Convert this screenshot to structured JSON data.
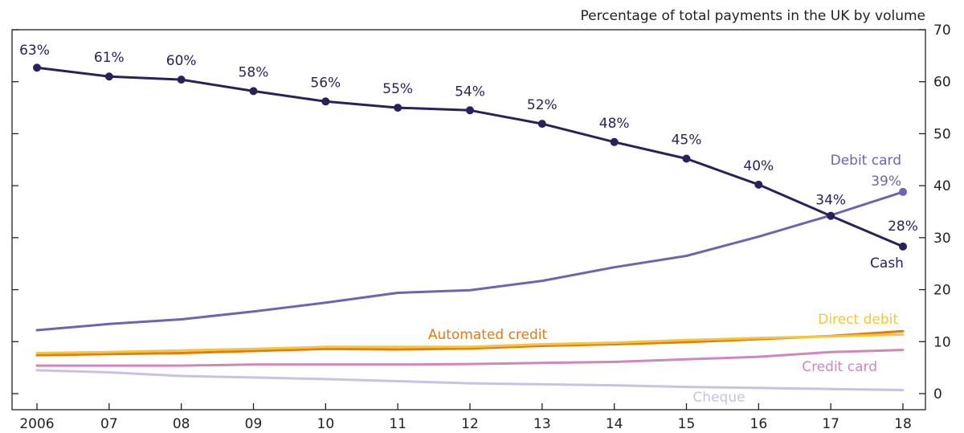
{
  "chart_data": {
    "type": "line",
    "title": "",
    "ylabel": "Percentage of total payments in the UK by volume",
    "xlabel": "",
    "ylim": [
      0,
      70
    ],
    "yticks": [
      "0",
      "10",
      "20",
      "30",
      "40",
      "50",
      "60",
      "70"
    ],
    "categories": [
      "2006",
      "07",
      "08",
      "09",
      "10",
      "11",
      "12",
      "13",
      "14",
      "15",
      "16",
      "17",
      "18"
    ],
    "grid": false,
    "series": [
      {
        "name": "Cash",
        "color": "#27235a",
        "markers": true,
        "values": [
          62.7,
          61.0,
          60.4,
          58.2,
          56.2,
          55.0,
          54.5,
          51.9,
          48.4,
          45.2,
          40.2,
          34.2,
          28.3
        ],
        "value_labels": [
          "63%",
          "61%",
          "60%",
          "58%",
          "56%",
          "55%",
          "54%",
          "52%",
          "48%",
          "45%",
          "40%",
          "34%",
          "28%"
        ]
      },
      {
        "name": "Debit card",
        "color": "#6e64b0",
        "values": [
          12.2,
          13.4,
          14.3,
          15.8,
          17.5,
          19.4,
          19.9,
          21.7,
          24.3,
          26.5,
          30.2,
          34.3,
          38.8
        ],
        "end_label": "39%"
      },
      {
        "name": "Direct debit",
        "color": "#f5c53b",
        "values": [
          7.8,
          8.0,
          8.3,
          8.6,
          9.0,
          9.0,
          9.0,
          9.5,
          9.8,
          10.3,
          10.7,
          11.0,
          11.4
        ]
      },
      {
        "name": "Automated credit",
        "color": "#e17b12",
        "values": [
          7.4,
          7.6,
          7.8,
          8.2,
          8.6,
          8.5,
          8.7,
          9.2,
          9.5,
          9.9,
          10.5,
          11.1,
          12.0
        ]
      },
      {
        "name": "Credit card",
        "color": "#cf87be",
        "values": [
          5.4,
          5.4,
          5.4,
          5.6,
          5.6,
          5.6,
          5.7,
          5.9,
          6.1,
          6.6,
          7.1,
          8.0,
          8.4
        ]
      },
      {
        "name": "Cheque",
        "color": "#c8c3e2",
        "values": [
          4.5,
          4.1,
          3.4,
          3.1,
          2.8,
          2.4,
          2.0,
          1.8,
          1.6,
          1.3,
          1.1,
          0.9,
          0.7
        ]
      }
    ]
  }
}
